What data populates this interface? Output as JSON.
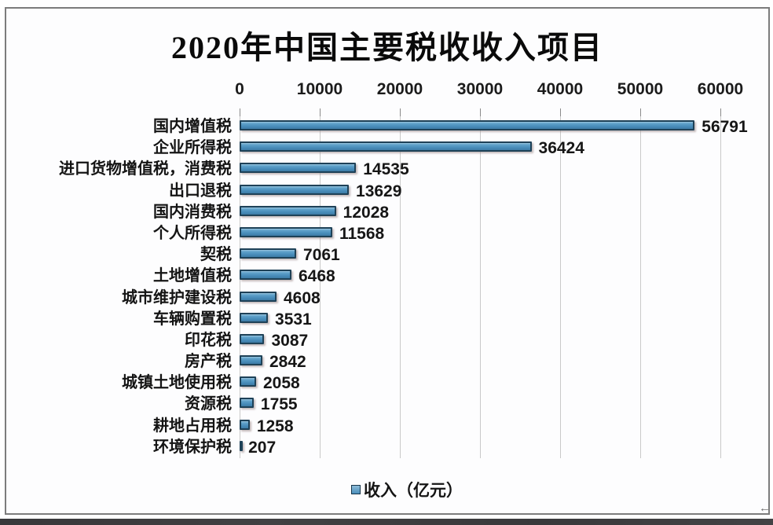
{
  "page": {
    "background": "#ffffff",
    "frame_border_color": "#7c7c7c",
    "bottom_strip_color": "#3a3a3c",
    "corner_glyph": "←"
  },
  "chart_data": {
    "type": "bar",
    "orientation": "horizontal",
    "title": "2020年中国主要税收收入项目",
    "categories": [
      "国内增值税",
      "企业所得税",
      "进口货物增值税，消费税",
      "出口退税",
      "国内消费税",
      "个人所得税",
      "契税",
      "土地增值税",
      "城市维护建设税",
      "车辆购置税",
      "印花税",
      "房产税",
      "城镇土地使用税",
      "资源税",
      "耕地占用税",
      "环境保护税"
    ],
    "values": [
      56791,
      36424,
      14535,
      13629,
      12028,
      11568,
      7061,
      6468,
      4608,
      3531,
      3087,
      2842,
      2058,
      1755,
      1258,
      207
    ],
    "series_name": "收入（亿元）",
    "xlabel": "",
    "ylabel": "",
    "xlim": [
      0,
      60000
    ],
    "x_ticks": [
      0,
      10000,
      20000,
      30000,
      40000,
      50000,
      60000
    ],
    "grid": true,
    "value_labels": true,
    "legend_position": "bottom",
    "bar_color": "#4a8fbc",
    "bar_border_color": "#1e4157",
    "gridline_color": "#c9c9c9"
  }
}
